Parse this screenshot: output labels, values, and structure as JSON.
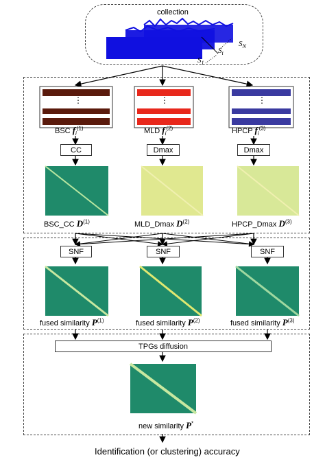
{
  "collection": {
    "title": "collection",
    "song_labels": {
      "first": "S",
      "first_sub": "1",
      "middle": "S",
      "middle_sub": "i",
      "last": "S",
      "last_sub": "N"
    }
  },
  "features": [
    {
      "name": "BSC",
      "symbol": "f",
      "sub": "i",
      "sup": "(1)",
      "op": "CC",
      "dist_name": "BSC_CC",
      "dist_symbol": "D",
      "dist_sup": "(1)"
    },
    {
      "name": "MLD",
      "symbol": "f",
      "sub": "i",
      "sup": "(2)",
      "op": "Dmax",
      "dist_name": "MLD_Dmax",
      "dist_symbol": "D",
      "dist_sup": "(2)"
    },
    {
      "name": "HPCP",
      "symbol": "f",
      "sub": "i",
      "sup": "(3)",
      "op": "Dmax",
      "dist_name": "HPCP_Dmax",
      "dist_symbol": "D",
      "dist_sup": "(3)"
    }
  ],
  "snf": [
    {
      "op": "SNF",
      "label": "fused similarity",
      "symbol": "P",
      "sup": "(1)"
    },
    {
      "op": "SNF",
      "label": "fused similarity",
      "symbol": "P",
      "sup": "(2)"
    },
    {
      "op": "SNF",
      "label": "fused similarity",
      "symbol": "P",
      "sup": "(3)"
    }
  ],
  "diffusion": {
    "op": "TPGs diffusion",
    "label": "new similarity",
    "symbol": "P",
    "sup": "*"
  },
  "output": {
    "label": "Identification (or clustering) accuracy"
  },
  "colors": {
    "waveform": "#1010e0",
    "bsc_bg": "#5a1a0c",
    "mld_bg": "#e8281c",
    "hpcp_bg": "#3a3aa0",
    "matrix_green": "#1f8a6a",
    "matrix_yellow": "#e8e890"
  }
}
